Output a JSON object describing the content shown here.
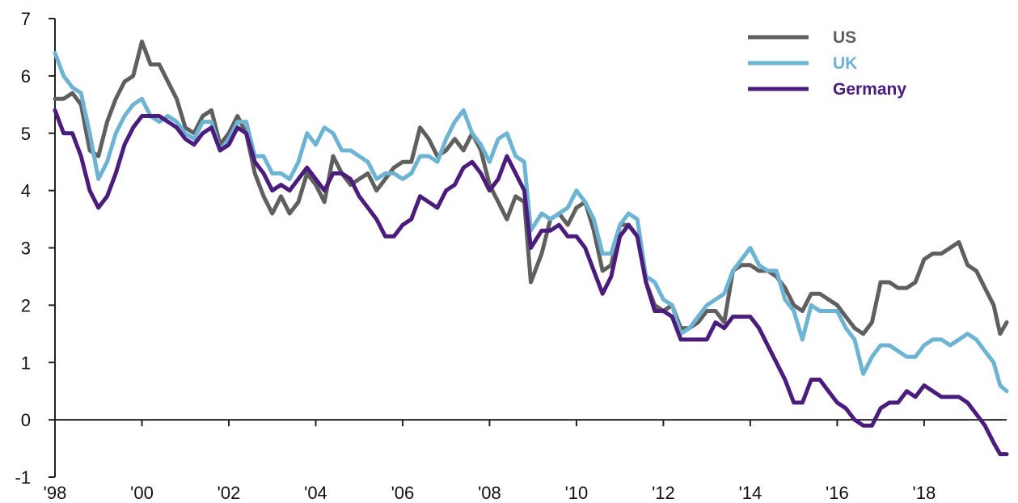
{
  "chart_data": {
    "type": "line",
    "title": "",
    "xlabel": "",
    "ylabel": "",
    "xlim": [
      1998,
      2019.9
    ],
    "ylim": [
      -1,
      7
    ],
    "grid": false,
    "legend_position": "top-right",
    "x_ticks": [
      {
        "value": 1998,
        "label": "'98"
      },
      {
        "value": 2000,
        "label": "'00"
      },
      {
        "value": 2002,
        "label": "'02"
      },
      {
        "value": 2004,
        "label": "'04"
      },
      {
        "value": 2006,
        "label": "'06"
      },
      {
        "value": 2008,
        "label": "'08"
      },
      {
        "value": 2010,
        "label": "'10"
      },
      {
        "value": 2012,
        "label": "'12"
      },
      {
        "value": 2014,
        "label": "'14"
      },
      {
        "value": 2016,
        "label": "'16"
      },
      {
        "value": 2018,
        "label": "'18"
      }
    ],
    "y_ticks": [
      {
        "value": 7,
        "label": "7"
      },
      {
        "value": 6,
        "label": "6"
      },
      {
        "value": 5,
        "label": "5"
      },
      {
        "value": 4,
        "label": "4"
      },
      {
        "value": 3,
        "label": "3"
      },
      {
        "value": 2,
        "label": "2"
      },
      {
        "value": 1,
        "label": "1"
      },
      {
        "value": 0,
        "label": "0"
      },
      {
        "value": -1,
        "label": "-1"
      }
    ],
    "series": [
      {
        "name": "US",
        "color": "#5f5f5f",
        "x": [
          1998.0,
          1998.2,
          1998.4,
          1998.6,
          1998.8,
          1999.0,
          1999.2,
          1999.4,
          1999.6,
          1999.8,
          2000.0,
          2000.2,
          2000.4,
          2000.6,
          2000.8,
          2001.0,
          2001.2,
          2001.4,
          2001.6,
          2001.8,
          2002.0,
          2002.2,
          2002.4,
          2002.6,
          2002.8,
          2003.0,
          2003.2,
          2003.4,
          2003.6,
          2003.8,
          2004.0,
          2004.2,
          2004.4,
          2004.6,
          2004.8,
          2005.0,
          2005.2,
          2005.4,
          2005.6,
          2005.8,
          2006.0,
          2006.2,
          2006.4,
          2006.6,
          2006.8,
          2007.0,
          2007.2,
          2007.4,
          2007.6,
          2007.8,
          2008.0,
          2008.2,
          2008.4,
          2008.6,
          2008.8,
          2008.95,
          2009.2,
          2009.4,
          2009.6,
          2009.8,
          2010.0,
          2010.2,
          2010.4,
          2010.6,
          2010.8,
          2011.0,
          2011.2,
          2011.4,
          2011.6,
          2011.8,
          2012.0,
          2012.2,
          2012.4,
          2012.6,
          2012.8,
          2013.0,
          2013.2,
          2013.4,
          2013.6,
          2013.8,
          2014.0,
          2014.2,
          2014.4,
          2014.6,
          2014.8,
          2015.0,
          2015.2,
          2015.4,
          2015.6,
          2015.8,
          2016.0,
          2016.2,
          2016.4,
          2016.6,
          2016.8,
          2017.0,
          2017.2,
          2017.4,
          2017.6,
          2017.8,
          2018.0,
          2018.2,
          2018.4,
          2018.6,
          2018.8,
          2019.0,
          2019.2,
          2019.4,
          2019.6,
          2019.75,
          2019.9
        ],
        "values": [
          5.6,
          5.6,
          5.7,
          5.5,
          4.7,
          4.6,
          5.2,
          5.6,
          5.9,
          6.0,
          6.6,
          6.2,
          6.2,
          5.9,
          5.6,
          5.1,
          5.0,
          5.3,
          5.4,
          4.8,
          5.0,
          5.3,
          5.0,
          4.3,
          3.9,
          3.6,
          3.9,
          3.6,
          3.8,
          4.3,
          4.1,
          3.8,
          4.6,
          4.3,
          4.1,
          4.2,
          4.3,
          4.0,
          4.2,
          4.4,
          4.5,
          4.5,
          5.1,
          4.9,
          4.6,
          4.7,
          4.9,
          4.7,
          5.0,
          4.7,
          4.1,
          3.8,
          3.5,
          3.9,
          3.8,
          2.4,
          2.9,
          3.5,
          3.6,
          3.4,
          3.7,
          3.8,
          3.3,
          2.6,
          2.7,
          3.4,
          3.4,
          3.2,
          2.4,
          2.0,
          1.9,
          2.0,
          1.6,
          1.6,
          1.7,
          1.9,
          1.9,
          1.7,
          2.6,
          2.7,
          2.7,
          2.6,
          2.6,
          2.5,
          2.3,
          2.0,
          1.9,
          2.2,
          2.2,
          2.1,
          2.0,
          1.8,
          1.6,
          1.5,
          1.7,
          2.4,
          2.4,
          2.3,
          2.3,
          2.4,
          2.8,
          2.9,
          2.9,
          3.0,
          3.1,
          2.7,
          2.6,
          2.3,
          2.0,
          1.5,
          1.7
        ]
      },
      {
        "name": "UK",
        "color": "#6db3d3",
        "x": [
          1998.0,
          1998.2,
          1998.4,
          1998.6,
          1998.8,
          1999.0,
          1999.2,
          1999.4,
          1999.6,
          1999.8,
          2000.0,
          2000.2,
          2000.4,
          2000.6,
          2000.8,
          2001.0,
          2001.2,
          2001.4,
          2001.6,
          2001.8,
          2002.0,
          2002.2,
          2002.4,
          2002.6,
          2002.8,
          2003.0,
          2003.2,
          2003.4,
          2003.6,
          2003.8,
          2004.0,
          2004.2,
          2004.4,
          2004.6,
          2004.8,
          2005.0,
          2005.2,
          2005.4,
          2005.6,
          2005.8,
          2006.0,
          2006.2,
          2006.4,
          2006.6,
          2006.8,
          2007.0,
          2007.2,
          2007.4,
          2007.6,
          2007.8,
          2008.0,
          2008.2,
          2008.4,
          2008.6,
          2008.8,
          2008.95,
          2009.2,
          2009.4,
          2009.6,
          2009.8,
          2010.0,
          2010.2,
          2010.4,
          2010.6,
          2010.8,
          2011.0,
          2011.2,
          2011.4,
          2011.6,
          2011.8,
          2012.0,
          2012.2,
          2012.4,
          2012.6,
          2012.8,
          2013.0,
          2013.2,
          2013.4,
          2013.6,
          2013.8,
          2014.0,
          2014.2,
          2014.4,
          2014.6,
          2014.8,
          2015.0,
          2015.2,
          2015.4,
          2015.6,
          2015.8,
          2016.0,
          2016.2,
          2016.4,
          2016.6,
          2016.8,
          2017.0,
          2017.2,
          2017.4,
          2017.6,
          2017.8,
          2018.0,
          2018.2,
          2018.4,
          2018.6,
          2018.8,
          2019.0,
          2019.2,
          2019.4,
          2019.6,
          2019.75,
          2019.9
        ],
        "values": [
          6.4,
          6.0,
          5.8,
          5.7,
          5.0,
          4.2,
          4.5,
          5.0,
          5.3,
          5.5,
          5.6,
          5.3,
          5.2,
          5.3,
          5.2,
          5.0,
          4.9,
          5.2,
          5.2,
          4.7,
          4.9,
          5.2,
          5.2,
          4.6,
          4.6,
          4.3,
          4.3,
          4.2,
          4.5,
          5.0,
          4.8,
          5.1,
          5.0,
          4.7,
          4.7,
          4.6,
          4.5,
          4.2,
          4.3,
          4.3,
          4.2,
          4.3,
          4.6,
          4.6,
          4.5,
          4.9,
          5.2,
          5.4,
          5.0,
          4.8,
          4.5,
          4.9,
          5.0,
          4.6,
          4.5,
          3.3,
          3.6,
          3.5,
          3.6,
          3.7,
          4.0,
          3.8,
          3.5,
          2.9,
          2.9,
          3.4,
          3.6,
          3.5,
          2.5,
          2.4,
          2.1,
          2.0,
          1.5,
          1.6,
          1.8,
          2.0,
          2.1,
          2.2,
          2.6,
          2.8,
          3.0,
          2.7,
          2.6,
          2.6,
          2.1,
          1.9,
          1.4,
          2.0,
          1.9,
          1.9,
          1.9,
          1.6,
          1.4,
          0.8,
          1.1,
          1.3,
          1.3,
          1.2,
          1.1,
          1.1,
          1.3,
          1.4,
          1.4,
          1.3,
          1.4,
          1.5,
          1.4,
          1.2,
          1.0,
          0.6,
          0.5
        ]
      },
      {
        "name": "Germany",
        "color": "#4a1c7c",
        "x": [
          1998.0,
          1998.2,
          1998.4,
          1998.6,
          1998.8,
          1999.0,
          1999.2,
          1999.4,
          1999.6,
          1999.8,
          2000.0,
          2000.2,
          2000.4,
          2000.6,
          2000.8,
          2001.0,
          2001.2,
          2001.4,
          2001.6,
          2001.8,
          2002.0,
          2002.2,
          2002.4,
          2002.6,
          2002.8,
          2003.0,
          2003.2,
          2003.4,
          2003.6,
          2003.8,
          2004.0,
          2004.2,
          2004.4,
          2004.6,
          2004.8,
          2005.0,
          2005.2,
          2005.4,
          2005.6,
          2005.8,
          2006.0,
          2006.2,
          2006.4,
          2006.6,
          2006.8,
          2007.0,
          2007.2,
          2007.4,
          2007.6,
          2007.8,
          2008.0,
          2008.2,
          2008.4,
          2008.6,
          2008.8,
          2008.95,
          2009.2,
          2009.4,
          2009.6,
          2009.8,
          2010.0,
          2010.2,
          2010.4,
          2010.6,
          2010.8,
          2011.0,
          2011.2,
          2011.4,
          2011.6,
          2011.8,
          2012.0,
          2012.2,
          2012.4,
          2012.6,
          2012.8,
          2013.0,
          2013.2,
          2013.4,
          2013.6,
          2013.8,
          2014.0,
          2014.2,
          2014.4,
          2014.6,
          2014.8,
          2015.0,
          2015.2,
          2015.4,
          2015.6,
          2015.8,
          2016.0,
          2016.2,
          2016.4,
          2016.6,
          2016.8,
          2017.0,
          2017.2,
          2017.4,
          2017.6,
          2017.8,
          2018.0,
          2018.2,
          2018.4,
          2018.6,
          2018.8,
          2019.0,
          2019.2,
          2019.4,
          2019.6,
          2019.75,
          2019.9
        ],
        "values": [
          5.4,
          5.0,
          5.0,
          4.6,
          4.0,
          3.7,
          3.9,
          4.3,
          4.8,
          5.1,
          5.3,
          5.3,
          5.3,
          5.2,
          5.1,
          4.9,
          4.8,
          5.0,
          5.1,
          4.7,
          4.8,
          5.1,
          5.0,
          4.5,
          4.3,
          4.0,
          4.1,
          4.0,
          4.2,
          4.4,
          4.2,
          4.0,
          4.3,
          4.3,
          4.2,
          3.9,
          3.7,
          3.5,
          3.2,
          3.2,
          3.4,
          3.5,
          3.9,
          3.8,
          3.7,
          4.0,
          4.1,
          4.4,
          4.5,
          4.3,
          4.0,
          4.2,
          4.6,
          4.3,
          4.0,
          3.0,
          3.3,
          3.3,
          3.4,
          3.2,
          3.2,
          3.0,
          2.6,
          2.2,
          2.5,
          3.2,
          3.4,
          3.2,
          2.4,
          1.9,
          1.9,
          1.8,
          1.4,
          1.4,
          1.4,
          1.4,
          1.7,
          1.6,
          1.8,
          1.8,
          1.8,
          1.6,
          1.3,
          1.0,
          0.7,
          0.3,
          0.3,
          0.7,
          0.7,
          0.5,
          0.3,
          0.2,
          0.0,
          -0.1,
          -0.1,
          0.2,
          0.3,
          0.3,
          0.5,
          0.4,
          0.6,
          0.5,
          0.4,
          0.4,
          0.4,
          0.3,
          0.1,
          -0.1,
          -0.4,
          -0.6,
          -0.6
        ]
      }
    ]
  }
}
